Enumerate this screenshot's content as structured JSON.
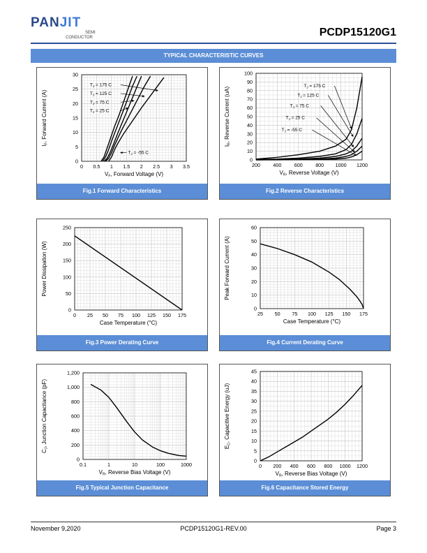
{
  "header": {
    "logo_pan": "PAN",
    "logo_jit": "JIT",
    "logo_semi": "SEMI",
    "logo_conductor": "CONDUCTOR",
    "part_number": "PCDP15120G1"
  },
  "section_title": "TYPICAL CHARACTERISTIC CURVES",
  "footer": {
    "date": "November 9,2020",
    "doc_id": "PCDP15120G1-REV.00",
    "page": "Page 3"
  },
  "colors": {
    "accent": "#5b8ed6",
    "header_line": "#2c4f9a"
  },
  "chart_data": [
    {
      "id": "fig1",
      "type": "line",
      "caption": "Fig.1 Forward Characteristics",
      "ylabel": "IF, Forward Current (A)",
      "xlabel": "VF, Forward Voltage (V)",
      "xlim": [
        0,
        3.5
      ],
      "ylim": [
        0,
        30
      ],
      "xticks": [
        "0",
        "0.5",
        "1",
        "1.5",
        "2",
        "2.5",
        "3",
        "3.5"
      ],
      "yticks": [
        "0",
        "5",
        "10",
        "15",
        "20",
        "25",
        "30"
      ],
      "series": [
        {
          "name": "TJ = -55 C",
          "x": [
            0.9,
            1.0,
            1.1,
            1.2,
            1.4,
            1.7,
            2.0,
            2.5,
            2.75
          ],
          "y": [
            0,
            1.5,
            4,
            6,
            9.5,
            14,
            18.5,
            25.5,
            29
          ]
        },
        {
          "name": "TJ = 25 C",
          "x": [
            0.8,
            0.9,
            1.0,
            1.1,
            1.3,
            1.5,
            1.8,
            2.1,
            2.3
          ],
          "y": [
            0,
            1,
            3,
            5.5,
            10,
            14,
            20,
            26,
            29.5
          ]
        },
        {
          "name": "TJ = 75 C",
          "x": [
            0.75,
            0.85,
            0.95,
            1.05,
            1.2,
            1.4,
            1.6,
            1.8,
            2.0
          ],
          "y": [
            0,
            1,
            3,
            5.5,
            9.5,
            14.5,
            19.5,
            24.5,
            29.5
          ]
        },
        {
          "name": "TJ = 125 C",
          "x": [
            0.7,
            0.8,
            0.9,
            1.0,
            1.15,
            1.3,
            1.5,
            1.7,
            1.85
          ],
          "y": [
            0,
            1.5,
            4,
            7,
            11,
            15,
            20.5,
            26,
            29.5
          ]
        },
        {
          "name": "TJ = 175 C",
          "x": [
            0.65,
            0.75,
            0.85,
            0.95,
            1.1,
            1.25,
            1.4,
            1.55,
            1.7
          ],
          "y": [
            0,
            1.5,
            4.5,
            7.5,
            12,
            16,
            20.5,
            25,
            29.5
          ]
        }
      ],
      "annotations": [
        {
          "label": "T",
          "sub": "J",
          "rest": " = 175 C",
          "series": 4
        },
        {
          "label": "T",
          "sub": "J",
          "rest": " = 125 C",
          "series": 3
        },
        {
          "label": "T",
          "sub": "J",
          "rest": " = 75 C",
          "series": 2
        },
        {
          "label": "T",
          "sub": "J",
          "rest": " = 25 C",
          "series": 1
        },
        {
          "label": "T",
          "sub": "J",
          "rest": " = -55 C",
          "series": 0
        }
      ]
    },
    {
      "id": "fig2",
      "type": "line",
      "caption": "Fig.2 Reverse Characteristics",
      "ylabel": "IR, Reverse Current (uA)",
      "xlabel": "VR, Reverse Voltage (V)",
      "xlim": [
        200,
        1200
      ],
      "ylim": [
        0,
        100
      ],
      "xticks": [
        "200",
        "400",
        "600",
        "800",
        "1000",
        "1200"
      ],
      "yticks": [
        "0",
        "10",
        "20",
        "30",
        "40",
        "50",
        "60",
        "70",
        "80",
        "90",
        "100"
      ],
      "series": [
        {
          "name": "TJ = 175 C",
          "x": [
            200,
            400,
            600,
            800,
            950,
            1050,
            1100,
            1150,
            1200
          ],
          "y": [
            1,
            3,
            6,
            10,
            16,
            24,
            35,
            60,
            96
          ]
        },
        {
          "name": "TJ = 125 C",
          "x": [
            200,
            400,
            600,
            800,
            950,
            1050,
            1100,
            1150,
            1200
          ],
          "y": [
            0.5,
            1,
            2,
            4,
            7,
            12,
            18,
            30,
            48
          ]
        },
        {
          "name": "TJ = 75 C",
          "x": [
            200,
            400,
            600,
            800,
            950,
            1050,
            1100,
            1150,
            1200
          ],
          "y": [
            0.2,
            0.5,
            1,
            2,
            4,
            7,
            10,
            16,
            25
          ]
        },
        {
          "name": "TJ = 25 C",
          "x": [
            200,
            400,
            600,
            800,
            950,
            1050,
            1100,
            1150,
            1200
          ],
          "y": [
            0.1,
            0.2,
            0.5,
            1,
            2,
            4,
            6,
            10,
            16
          ]
        },
        {
          "name": "TJ = -55 C",
          "x": [
            200,
            400,
            600,
            800,
            950,
            1050,
            1100,
            1150,
            1200
          ],
          "y": [
            0,
            0.1,
            0.3,
            0.6,
            1,
            2,
            3.5,
            6,
            10
          ]
        }
      ],
      "annotations": [
        {
          "label": "T",
          "sub": "J",
          "rest": " = 175 C",
          "series": 0
        },
        {
          "label": "T",
          "sub": "J",
          "rest": " = 125 C",
          "series": 1
        },
        {
          "label": "T",
          "sub": "J",
          "rest": " = 75 C",
          "series": 2
        },
        {
          "label": "T",
          "sub": "J",
          "rest": " = 25 C",
          "series": 3
        },
        {
          "label": "T",
          "sub": "J",
          "rest": " = -55 C",
          "series": 4
        }
      ]
    },
    {
      "id": "fig3",
      "type": "line",
      "caption": "Fig.3 Power Derating Curve",
      "ylabel": "Power Dissipation (W)",
      "xlabel": "Case Temperature (°C)",
      "xlim": [
        0,
        175
      ],
      "ylim": [
        0,
        250
      ],
      "xticks": [
        "0",
        "25",
        "50",
        "75",
        "100",
        "125",
        "150",
        "175"
      ],
      "yticks": [
        "0",
        "50",
        "100",
        "150",
        "200",
        "250"
      ],
      "series": [
        {
          "name": "",
          "x": [
            0,
            175
          ],
          "y": [
            225,
            0
          ]
        }
      ]
    },
    {
      "id": "fig4",
      "type": "line",
      "caption": "Fig.4 Current Derating Curve",
      "ylabel": "Peak Forward Current (A)",
      "xlabel": "Case Temperature (°C)",
      "xlim": [
        25,
        175
      ],
      "ylim": [
        0,
        60
      ],
      "xticks": [
        "25",
        "50",
        "75",
        "100",
        "125",
        "150",
        "175"
      ],
      "yticks": [
        "0",
        "10",
        "20",
        "30",
        "40",
        "50",
        "60"
      ],
      "series": [
        {
          "name": "",
          "x": [
            25,
            50,
            75,
            100,
            125,
            140,
            155,
            165,
            170,
            173,
            175
          ],
          "y": [
            48,
            44.5,
            40,
            34.5,
            27,
            21.5,
            14.5,
            9,
            5.5,
            3,
            0
          ]
        }
      ]
    },
    {
      "id": "fig5",
      "type": "line",
      "caption": "Fig.5 Typical Junction Capacitance",
      "ylabel": "CJ, Junction Capacitance (pF)",
      "xlabel": "VR, Reverse Bias Voltage (V)",
      "xscale": "log",
      "xlim": [
        0.1,
        1000
      ],
      "ylim": [
        0,
        1200
      ],
      "xticks": [
        "0.1",
        "1",
        "10",
        "100",
        "1000"
      ],
      "yticks": [
        "0",
        "200",
        "400",
        "600",
        "800",
        "1,000",
        "1,200"
      ],
      "series": [
        {
          "name": "",
          "x": [
            0.2,
            0.5,
            1,
            2,
            5,
            10,
            20,
            50,
            100,
            200,
            500,
            1000
          ],
          "y": [
            1040,
            960,
            860,
            720,
            520,
            380,
            270,
            170,
            120,
            85,
            55,
            45
          ]
        }
      ]
    },
    {
      "id": "fig6",
      "type": "line",
      "caption": "Fig.6 Capacitance Stored Energy",
      "ylabel": "EC, Capacitive Energy (uJ)",
      "xlabel": "VR, Reverse Bias Voltage (V)",
      "xlim": [
        0,
        1200
      ],
      "ylim": [
        0,
        45
      ],
      "xticks": [
        "0",
        "200",
        "400",
        "600",
        "800",
        "1000",
        "1200"
      ],
      "yticks": [
        "0",
        "5",
        "10",
        "15",
        "20",
        "25",
        "30",
        "35",
        "40",
        "45"
      ],
      "series": [
        {
          "name": "",
          "x": [
            0,
            100,
            200,
            300,
            400,
            500,
            600,
            700,
            800,
            900,
            1000,
            1100,
            1200
          ],
          "y": [
            0,
            2,
            4.5,
            7,
            9.5,
            12,
            15,
            18,
            21,
            24.5,
            28.5,
            33,
            38
          ]
        }
      ]
    }
  ]
}
